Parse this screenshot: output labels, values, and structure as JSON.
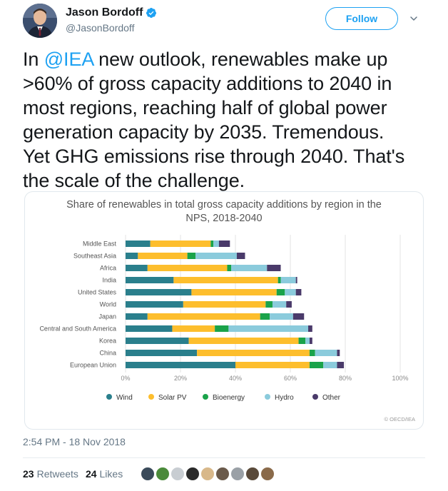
{
  "author": {
    "name": "Jason Bordoff",
    "handle": "@JasonBordoff"
  },
  "follow_label": "Follow",
  "tweet": {
    "mention": "@IEA",
    "lines": [
      " new outlook, renewables make up",
      ">60% of gross capacity additions to 2040 in",
      "most regions, reaching half of global power",
      "generation capacity by 2035. Tremendous.",
      "Yet GHG emissions rise through 2040. That's",
      "the scale of the challenge."
    ],
    "line1_prefix": "In "
  },
  "chart_data": {
    "type": "bar",
    "orientation": "horizontal",
    "stacked": true,
    "title_lines": [
      "Share of renewables in total gross capacity additions by region in the",
      "NPS, 2018-2040"
    ],
    "categories": [
      "Middle East",
      "Southeast Asia",
      "Africa",
      "India",
      "United States",
      "World",
      "Japan",
      "Central and South America",
      "Korea",
      "China",
      "European Union"
    ],
    "series": [
      {
        "name": "Wind",
        "color": "#2a7f8c",
        "values": [
          9,
          4.5,
          8,
          17.5,
          24,
          21,
          8,
          17,
          23,
          26,
          40
        ]
      },
      {
        "name": "Solar PV",
        "color": "#fdbe2d",
        "values": [
          22,
          18,
          29,
          38,
          31,
          30,
          41,
          15.5,
          40,
          41,
          27
        ]
      },
      {
        "name": "Bioenergy",
        "color": "#1aa34a",
        "values": [
          1,
          3,
          1.5,
          1,
          3,
          2.5,
          3.5,
          5,
          2.5,
          2,
          5
        ]
      },
      {
        "name": "Hydro",
        "color": "#8bcbdc",
        "values": [
          2,
          15,
          13,
          5.5,
          4,
          5,
          8.5,
          29,
          1.5,
          8,
          5
        ]
      },
      {
        "name": "Other",
        "color": "#4a3a6a",
        "values": [
          4,
          3,
          5,
          0.5,
          2,
          2,
          4,
          1.5,
          1,
          1,
          2.5
        ]
      }
    ],
    "xlim": [
      0,
      100
    ],
    "xticks": [
      "0%",
      "20%",
      "40%",
      "60%",
      "80%",
      "100%"
    ],
    "legend_position": "bottom",
    "source": "© OECD/IEA"
  },
  "timestamp": "2:54 PM - 18 Nov 2018",
  "stats": {
    "retweets_count": "23",
    "retweets_label": "Retweets",
    "likes_count": "24",
    "likes_label": "Likes"
  },
  "likers": [
    "#3a4a5a",
    "#4a8a3a",
    "#c8cdd2",
    "#2a2a2a",
    "#d8b88a",
    "#6a5a4a",
    "#9aa0a6",
    "#5a4a3a",
    "#8a6a4a"
  ]
}
